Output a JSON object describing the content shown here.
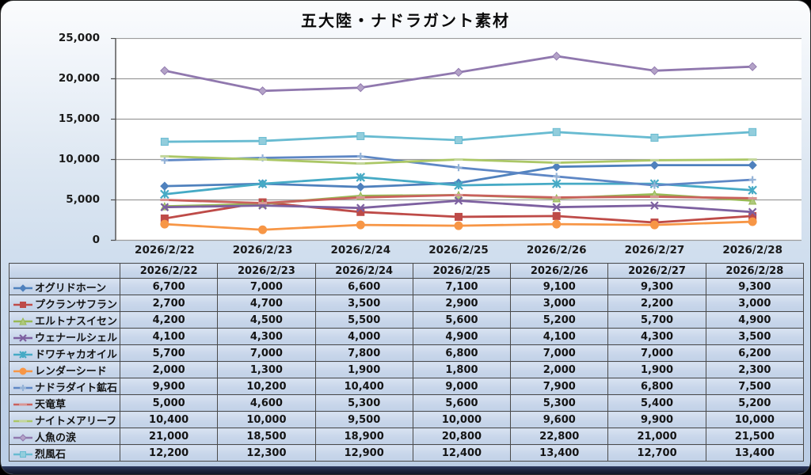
{
  "title": "五大陸・ナドラガント素材",
  "chart_data": {
    "type": "line",
    "title": "五大陸・ナドラガント素材",
    "categories": [
      "2026/2/22",
      "2026/2/23",
      "2026/2/24",
      "2026/2/25",
      "2026/2/26",
      "2026/2/27",
      "2026/2/28"
    ],
    "series": [
      {
        "name": "オグリドホーン",
        "marker": "diamond",
        "color": "#4F81BD",
        "fill": "#4F81BD",
        "values": [
          6700,
          7000,
          6600,
          7100,
          9100,
          9300,
          9300
        ]
      },
      {
        "name": "プクランサフラン",
        "marker": "square",
        "color": "#BE4B48",
        "fill": "#BE4B48",
        "values": [
          2700,
          4700,
          3500,
          2900,
          3000,
          2200,
          3000
        ]
      },
      {
        "name": "エルトナスイセン",
        "marker": "triangle",
        "color": "#98B954",
        "fill": "#AFC97E",
        "values": [
          4200,
          4500,
          5500,
          5600,
          5200,
          5700,
          4900
        ]
      },
      {
        "name": "ウェナールシェル",
        "marker": "x",
        "color": "#7D60A0",
        "fill": "#7D60A0",
        "values": [
          4100,
          4300,
          4000,
          4900,
          4100,
          4300,
          3500
        ]
      },
      {
        "name": "ドワチャカオイル",
        "marker": "asterisk",
        "color": "#46AAC5",
        "fill": "#46AAC5",
        "values": [
          5700,
          7000,
          7800,
          6800,
          7000,
          7000,
          6200
        ]
      },
      {
        "name": "レンダーシード",
        "marker": "circle",
        "color": "#F79646",
        "fill": "#F79646",
        "values": [
          2000,
          1300,
          1900,
          1800,
          2000,
          1900,
          2300
        ]
      },
      {
        "name": "ナドラダイト鉱石",
        "marker": "plus",
        "color": "#5E87C5",
        "fill": "#95B3D7",
        "values": [
          9900,
          10200,
          10400,
          9000,
          7900,
          6800,
          7500
        ]
      },
      {
        "name": "天竜草",
        "marker": "dash",
        "color": "#C9615D",
        "fill": "#D99694",
        "values": [
          5000,
          4600,
          5300,
          5600,
          5300,
          5400,
          5200
        ]
      },
      {
        "name": "ナイトメアリーフ",
        "marker": "dash",
        "color": "#ABC766",
        "fill": "#C3D69B",
        "values": [
          10400,
          10000,
          9500,
          10000,
          9600,
          9900,
          10000
        ]
      },
      {
        "name": "人魚の涙",
        "marker": "diamond",
        "color": "#9078AE",
        "fill": "#B3A2C7",
        "values": [
          21000,
          18500,
          18900,
          20800,
          22800,
          21000,
          21500
        ]
      },
      {
        "name": "烈風石",
        "marker": "square",
        "color": "#68BBD1",
        "fill": "#92CDDC",
        "values": [
          12200,
          12300,
          12900,
          12400,
          13400,
          12700,
          13400
        ]
      }
    ],
    "xlabel": "",
    "ylabel": "",
    "ylim": [
      0,
      25000
    ],
    "ytick_step": 5000,
    "grid": true,
    "legend_position": "table-left-column",
    "plot_bg": "#FFFFFF",
    "gridline_color": "#9b9b9b",
    "axis_color": "#4d4d4d"
  }
}
